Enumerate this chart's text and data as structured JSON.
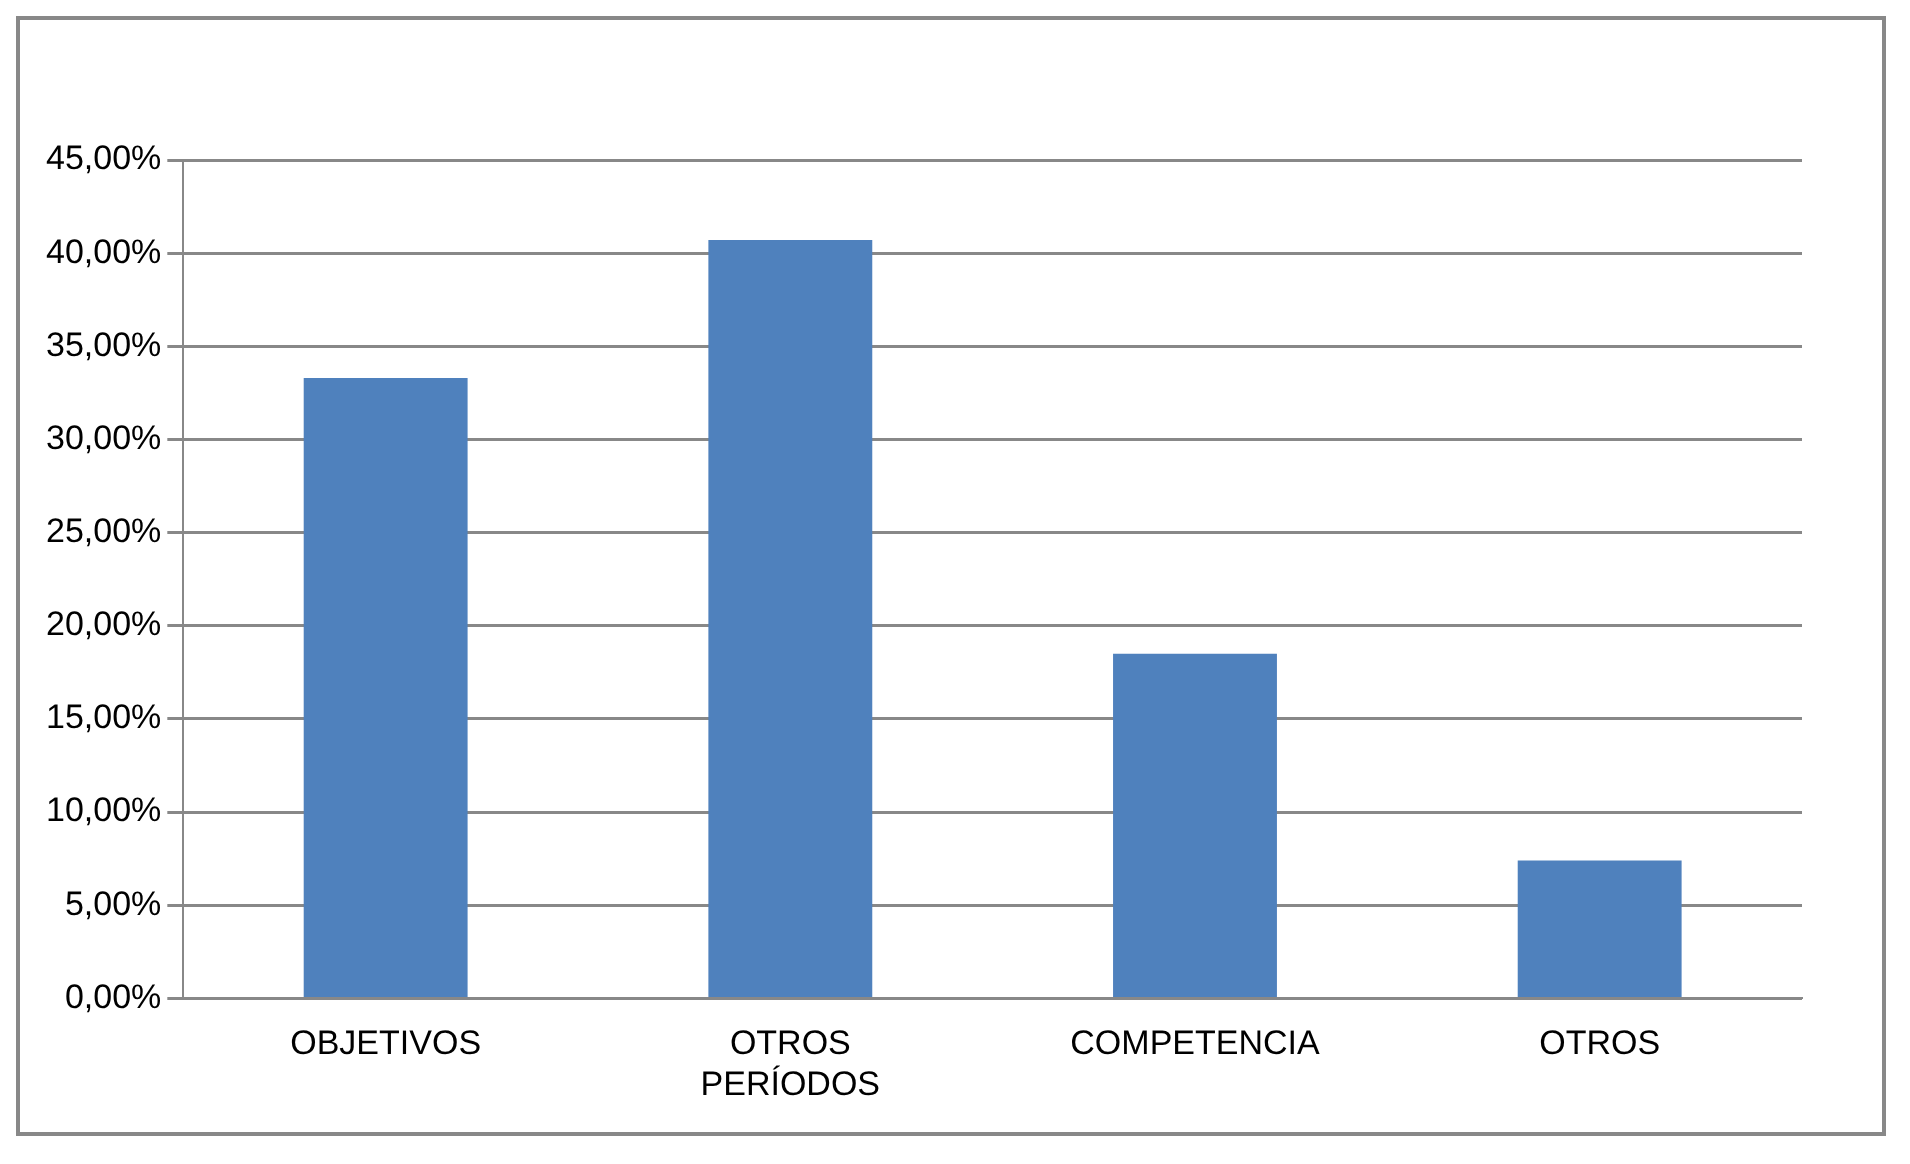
{
  "chart_data": {
    "type": "bar",
    "categories": [
      "OBJETIVOS",
      "OTROS PERÍODOS",
      "COMPETENCIA",
      "OTROS"
    ],
    "values": [
      33.3,
      40.7,
      18.5,
      7.4
    ],
    "color": "#4f81bd",
    "ylim": [
      0,
      45
    ],
    "yticks": [
      {
        "value": 0,
        "label": "0,00%"
      },
      {
        "value": 5,
        "label": "5,00%"
      },
      {
        "value": 10,
        "label": "10,00%"
      },
      {
        "value": 15,
        "label": "15,00%"
      },
      {
        "value": 20,
        "label": "20,00%"
      },
      {
        "value": 25,
        "label": "25,00%"
      },
      {
        "value": 30,
        "label": "30,00%"
      },
      {
        "value": 35,
        "label": "35,00%"
      },
      {
        "value": 40,
        "label": "40,00%"
      },
      {
        "value": 45,
        "label": "45,00%"
      }
    ],
    "grid": "y",
    "legend": false
  }
}
